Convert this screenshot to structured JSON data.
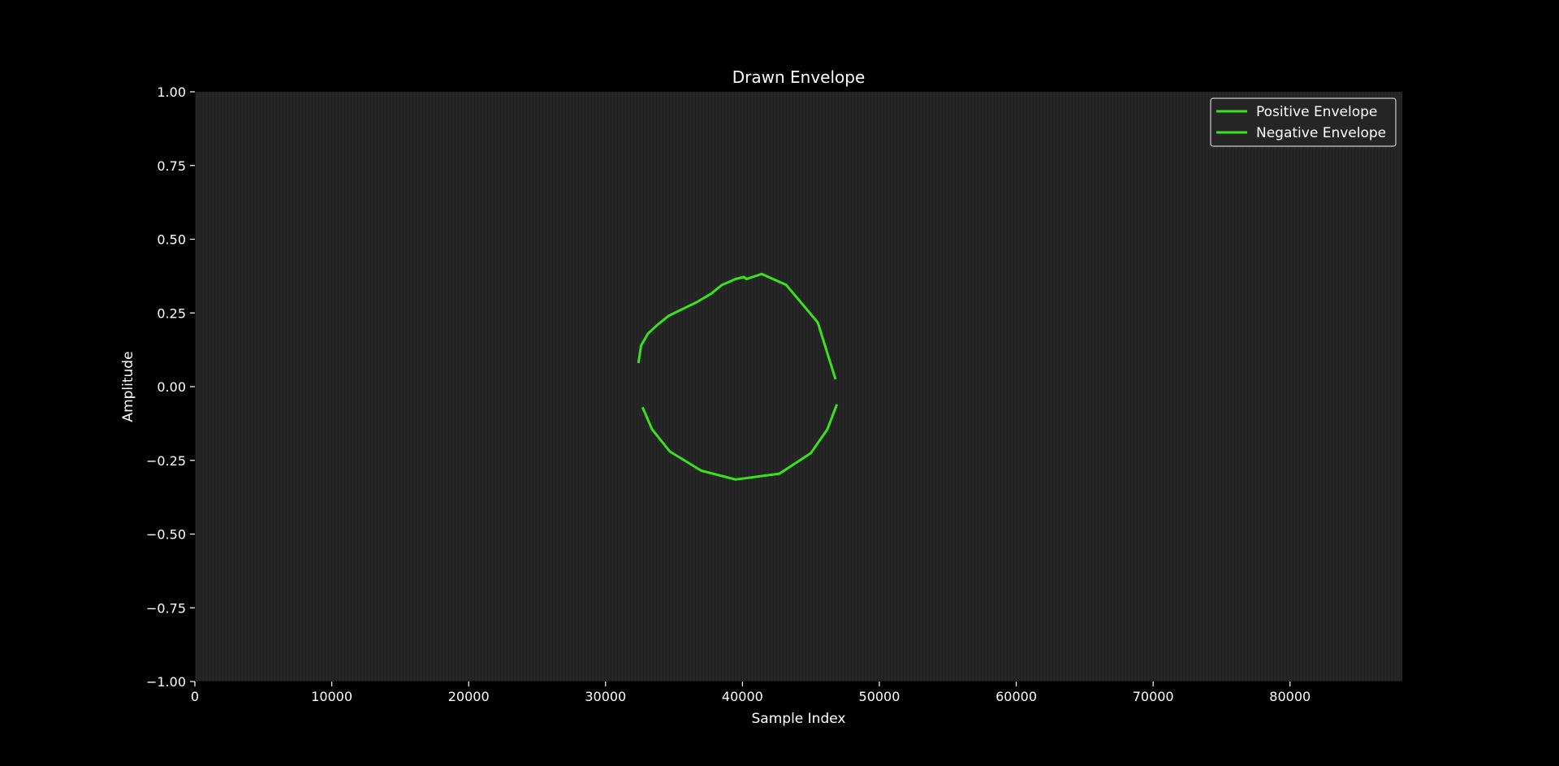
{
  "chart_data": {
    "type": "line",
    "title": "Drawn Envelope",
    "xlabel": "Sample Index",
    "ylabel": "Amplitude",
    "xlim": [
      0,
      88200
    ],
    "ylim": [
      -1.0,
      1.0
    ],
    "xticks": [
      0,
      10000,
      20000,
      30000,
      40000,
      50000,
      60000,
      70000,
      80000
    ],
    "yticks": [
      1.0,
      0.75,
      0.5,
      0.25,
      0.0,
      -0.25,
      -0.5,
      -0.75,
      -1.0
    ],
    "xtick_labels": [
      "0",
      "10000",
      "20000",
      "30000",
      "40000",
      "50000",
      "60000",
      "70000",
      "80000"
    ],
    "ytick_labels": [
      "1.00",
      "0.75",
      "0.50",
      "0.25",
      "0.00",
      "−0.25",
      "−0.50",
      "−0.75",
      "−1.00"
    ],
    "legend_position": "top-right",
    "grid": false,
    "background_color": "#262626",
    "figure_color": "#000000",
    "line_color": "#39e31c",
    "series": [
      {
        "name": "Positive Envelope",
        "color": "#39e31c",
        "points": [
          [
            32400,
            0.08
          ],
          [
            32600,
            0.14
          ],
          [
            33100,
            0.18
          ],
          [
            33800,
            0.21
          ],
          [
            34600,
            0.24
          ],
          [
            35700,
            0.265
          ],
          [
            36600,
            0.285
          ],
          [
            37700,
            0.315
          ],
          [
            38500,
            0.345
          ],
          [
            39500,
            0.365
          ],
          [
            40100,
            0.372
          ],
          [
            40300,
            0.365
          ],
          [
            41400,
            0.382
          ],
          [
            43200,
            0.345
          ],
          [
            45500,
            0.218
          ],
          [
            46800,
            0.025
          ]
        ]
      },
      {
        "name": "Negative Envelope",
        "color": "#39e31c",
        "points": [
          [
            32700,
            -0.07
          ],
          [
            33400,
            -0.145
          ],
          [
            34700,
            -0.22
          ],
          [
            37000,
            -0.285
          ],
          [
            39500,
            -0.315
          ],
          [
            42700,
            -0.295
          ],
          [
            45000,
            -0.225
          ],
          [
            46200,
            -0.145
          ],
          [
            46900,
            -0.06
          ]
        ]
      }
    ]
  }
}
